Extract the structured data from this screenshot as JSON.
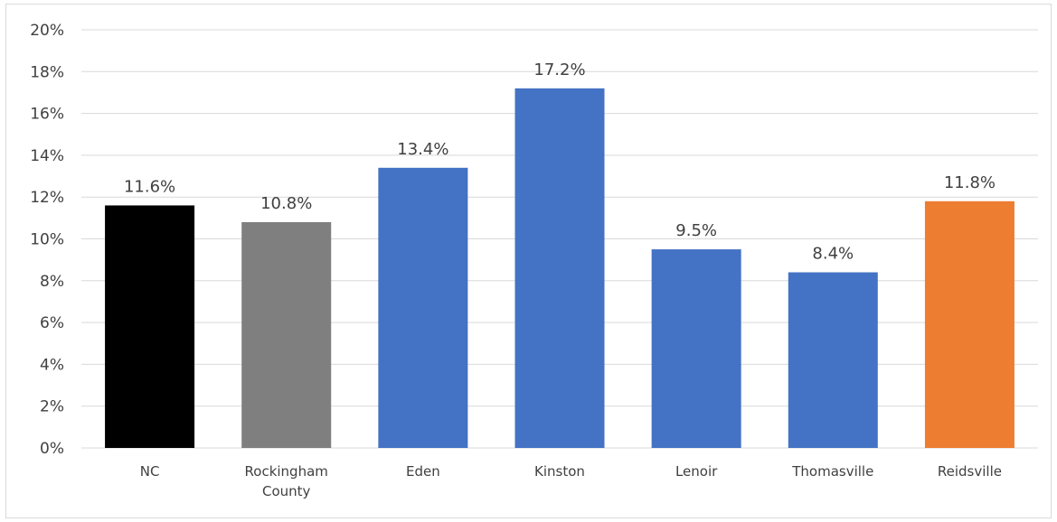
{
  "chart_data": {
    "type": "bar",
    "title": "",
    "xlabel": "",
    "ylabel": "",
    "ylim": [
      0,
      20
    ],
    "yticks": [
      "0%",
      "2%",
      "4%",
      "6%",
      "8%",
      "10%",
      "12%",
      "14%",
      "16%",
      "18%",
      "20%"
    ],
    "grid": true,
    "legend": "none",
    "categories": [
      [
        "NC"
      ],
      [
        "Rockingham",
        "County"
      ],
      [
        "Eden"
      ],
      [
        "Kinston"
      ],
      [
        "Lenoir"
      ],
      [
        "Thomasville"
      ],
      [
        "Reidsville"
      ]
    ],
    "values": [
      11.6,
      10.8,
      13.4,
      17.2,
      9.5,
      8.4,
      11.8
    ],
    "data_labels": [
      "11.6%",
      "10.8%",
      "13.4%",
      "17.2%",
      "9.5%",
      "8.4%",
      "11.8%"
    ],
    "colors": [
      "#000000",
      "#7f7f7f",
      "#4472c4",
      "#4472c4",
      "#4472c4",
      "#4472c4",
      "#ed7d31"
    ]
  }
}
